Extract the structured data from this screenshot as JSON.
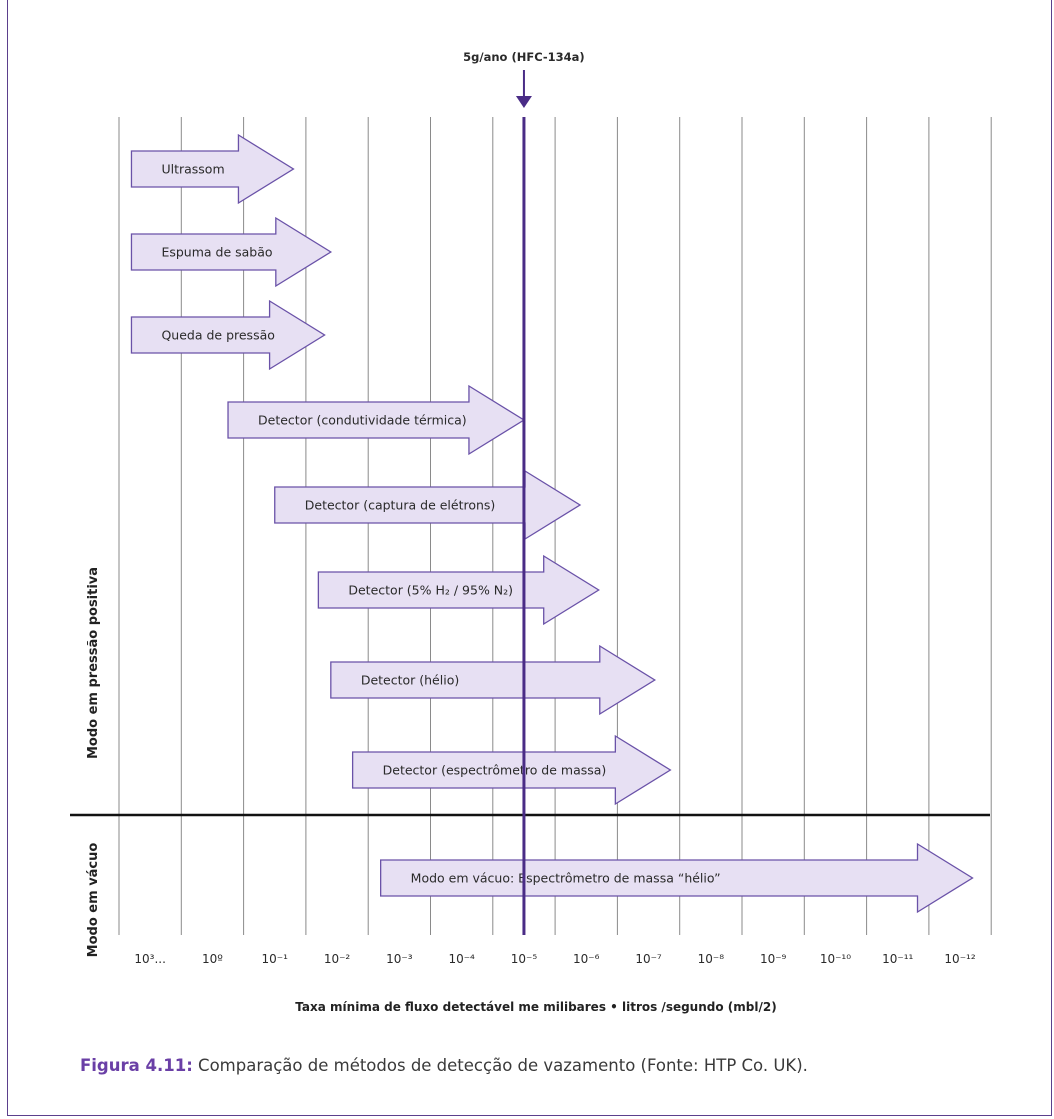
{
  "marker": {
    "label": "5g/ano (HFC-134a)",
    "position_column": 6.5
  },
  "ticks": [
    "10³...",
    "10º",
    "10⁻¹",
    "10⁻²",
    "10⁻³",
    "10⁻⁴",
    "10⁻⁵",
    "10⁻⁶",
    "10⁻⁷",
    "10⁻⁸",
    "10⁻⁹",
    "10⁻¹⁰",
    "10⁻¹¹",
    "10⁻¹²"
  ],
  "methods": [
    {
      "label": "Ultrassom",
      "start": 0.2,
      "end": 2.8,
      "mode": "pressure"
    },
    {
      "label": "Espuma de sabão",
      "start": 0.2,
      "end": 3.4,
      "mode": "pressure"
    },
    {
      "label": "Queda de pressão",
      "start": 0.2,
      "end": 3.3,
      "mode": "pressure"
    },
    {
      "label": "Detector (condutividade térmica)",
      "start": 1.75,
      "end": 6.5,
      "mode": "pressure"
    },
    {
      "label": "Detector (captura de elétrons)",
      "start": 2.5,
      "end": 7.4,
      "mode": "pressure"
    },
    {
      "label": "Detector (5% H₂ / 95% N₂)",
      "start": 3.2,
      "end": 7.7,
      "mode": "pressure"
    },
    {
      "label": "Detector (hélio)",
      "start": 3.4,
      "end": 8.6,
      "mode": "pressure"
    },
    {
      "label": "Detector (espectrômetro de massa)",
      "start": 3.75,
      "end": 8.85,
      "mode": "pressure"
    },
    {
      "label": "Modo em vácuo: Espectrômetro de massa “hélio”",
      "start": 4.2,
      "end": 13.7,
      "mode": "vacuum"
    }
  ],
  "modes": {
    "pressure": "Modo em pressão positiva",
    "vacuum": "Modo em vácuo"
  },
  "axis_title": "Taxa mínima de fluxo detectável me milibares • litros /segundo (mbl/2)",
  "caption": {
    "figure_label": "Figura 4.11:",
    "text": " Comparação de métodos de detecção de vazamento (Fonte: HTP Co. UK)."
  },
  "colors": {
    "frame": "#5b3f8c",
    "arrow_fill": "#e7e0f3",
    "arrow_stroke": "#6a52a8",
    "marker_line": "#4a2c86",
    "caption_label": "#6a3fa6"
  }
}
